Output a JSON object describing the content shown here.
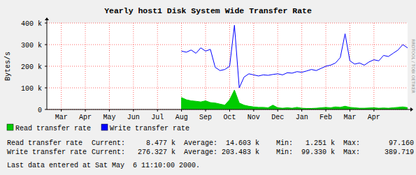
{
  "chart_data": {
    "type": "line",
    "title": "Yearly host1 Disk System Wide Transfer Rate",
    "y_label": "Bytes/s",
    "watermark": "RRDTOOL / TOBI OETIKER",
    "x": [
      5.6,
      5.8,
      6.0,
      6.2,
      6.4,
      6.6,
      6.8,
      7.0,
      7.2,
      7.4,
      7.6,
      7.8,
      8.0,
      8.2,
      8.4,
      8.6,
      8.8,
      9.0,
      9.2,
      9.4,
      9.6,
      9.8,
      10.0,
      10.2,
      10.4,
      10.6,
      10.8,
      11.0,
      11.2,
      11.4,
      11.6,
      11.8,
      12.0,
      12.2,
      12.4,
      12.6,
      12.8,
      13.0,
      13.2,
      13.4,
      13.6,
      13.8,
      14.0,
      14.2,
      14.4,
      14.6,
      14.8,
      15.0
    ],
    "series": [
      {
        "name": "Read transfer rate",
        "type": "area",
        "color": "#00cc00",
        "values": [
          55000,
          45000,
          40000,
          38000,
          35000,
          40000,
          32000,
          30000,
          25000,
          20000,
          45000,
          90000,
          30000,
          20000,
          15000,
          12000,
          10000,
          10000,
          8000,
          20000,
          8000,
          6000,
          8000,
          6000,
          10000,
          6000,
          5000,
          5000,
          6000,
          8000,
          10000,
          8000,
          12000,
          10000,
          15000,
          10000,
          8000,
          6000,
          6000,
          7000,
          8000,
          6000,
          7000,
          6000,
          8000,
          10000,
          12000,
          8500
        ]
      },
      {
        "name": "Write transfer rate",
        "type": "line",
        "color": "#0000ff",
        "values": [
          270000,
          265000,
          275000,
          260000,
          285000,
          270000,
          278000,
          195000,
          180000,
          185000,
          200000,
          389700,
          100000,
          150000,
          165000,
          160000,
          155000,
          160000,
          158000,
          162000,
          165000,
          160000,
          170000,
          168000,
          175000,
          172000,
          178000,
          185000,
          180000,
          190000,
          200000,
          205000,
          215000,
          240000,
          350000,
          225000,
          210000,
          215000,
          205000,
          220000,
          230000,
          225000,
          250000,
          245000,
          260000,
          275000,
          300000,
          285000
        ]
      }
    ],
    "xlim": [
      0,
      15
    ],
    "xticks": [
      {
        "value": 0.6,
        "label": "Mar"
      },
      {
        "value": 1.6,
        "label": "Apr"
      },
      {
        "value": 2.6,
        "label": "May"
      },
      {
        "value": 3.6,
        "label": "Jun"
      },
      {
        "value": 4.6,
        "label": "Jul"
      },
      {
        "value": 5.6,
        "label": "Aug"
      },
      {
        "value": 6.6,
        "label": "Sep"
      },
      {
        "value": 7.6,
        "label": "Oct"
      },
      {
        "value": 8.6,
        "label": "Nov"
      },
      {
        "value": 9.6,
        "label": "Dec"
      },
      {
        "value": 10.6,
        "label": "Jan"
      },
      {
        "value": 11.6,
        "label": "Feb"
      },
      {
        "value": 12.6,
        "label": "Mar"
      },
      {
        "value": 13.6,
        "label": "Apr"
      }
    ],
    "ylim": [
      0,
      400000
    ],
    "yticks": [
      0,
      {
        "value": 100000,
        "label": "100 k"
      },
      {
        "value": 200000,
        "label": "200 k"
      },
      {
        "value": 300000,
        "label": "300 k"
      },
      {
        "value": 400000,
        "label": "400 k"
      }
    ],
    "grid": true,
    "legend": "bottom",
    "stats": {
      "labels": [
        "Current:",
        "Average:",
        "Min:",
        "Max:"
      ],
      "rows": [
        {
          "name": "Read transfer rate",
          "values": [
            "8.477 k",
            "14.603 k",
            "1.251 k",
            "97.160"
          ]
        },
        {
          "name": "Write transfer rate",
          "values": [
            "276.327 k",
            "203.483 k",
            "99.330 k",
            "389.719"
          ]
        }
      ]
    },
    "last_update": "Last data entered at Sat May  6 11:10:00 2000."
  }
}
